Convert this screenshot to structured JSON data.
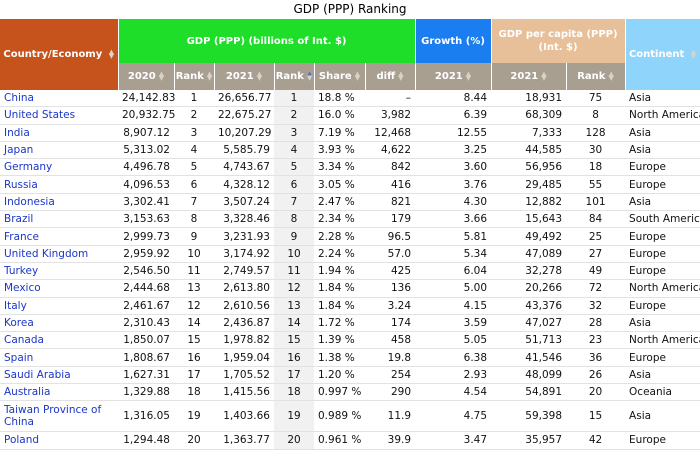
{
  "title": "GDP (PPP) Ranking",
  "headers": {
    "country": "Country/Economy",
    "gdp": "GDP (PPP) (billions of Int. $)",
    "growth": "Growth (%)",
    "capita": "GDP per capita (PPP) (Int. $)",
    "continent": "Continent",
    "sub": [
      "2020",
      "Rank",
      "2021",
      "Rank",
      "Share",
      "diff",
      "2021",
      "2021",
      "Rank"
    ]
  },
  "rows": [
    {
      "country": "China",
      "gdp2020": "24,142.83",
      "rank2020": "1",
      "gdp2021": "26,656.77",
      "rank2021": "1",
      "share": "18.8 %",
      "diff": "–",
      "growth": "8.44",
      "capita": "18,931",
      "capitaRank": "75",
      "continent": "Asia"
    },
    {
      "country": "United States",
      "gdp2020": "20,932.75",
      "rank2020": "2",
      "gdp2021": "22,675.27",
      "rank2021": "2",
      "share": "16.0 %",
      "diff": "3,982",
      "growth": "6.39",
      "capita": "68,309",
      "capitaRank": "8",
      "continent": "North America"
    },
    {
      "country": "India",
      "gdp2020": "8,907.12",
      "rank2020": "3",
      "gdp2021": "10,207.29",
      "rank2021": "3",
      "share": "7.19 %",
      "diff": "12,468",
      "growth": "12.55",
      "capita": "7,333",
      "capitaRank": "128",
      "continent": "Asia"
    },
    {
      "country": "Japan",
      "gdp2020": "5,313.02",
      "rank2020": "4",
      "gdp2021": "5,585.79",
      "rank2021": "4",
      "share": "3.93 %",
      "diff": "4,622",
      "growth": "3.25",
      "capita": "44,585",
      "capitaRank": "30",
      "continent": "Asia"
    },
    {
      "country": "Germany",
      "gdp2020": "4,496.78",
      "rank2020": "5",
      "gdp2021": "4,743.67",
      "rank2021": "5",
      "share": "3.34 %",
      "diff": "842",
      "growth": "3.60",
      "capita": "56,956",
      "capitaRank": "18",
      "continent": "Europe"
    },
    {
      "country": "Russia",
      "gdp2020": "4,096.53",
      "rank2020": "6",
      "gdp2021": "4,328.12",
      "rank2021": "6",
      "share": "3.05 %",
      "diff": "416",
      "growth": "3.76",
      "capita": "29,485",
      "capitaRank": "55",
      "continent": "Europe"
    },
    {
      "country": "Indonesia",
      "gdp2020": "3,302.41",
      "rank2020": "7",
      "gdp2021": "3,507.24",
      "rank2021": "7",
      "share": "2.47 %",
      "diff": "821",
      "growth": "4.30",
      "capita": "12,882",
      "capitaRank": "101",
      "continent": "Asia"
    },
    {
      "country": "Brazil",
      "gdp2020": "3,153.63",
      "rank2020": "8",
      "gdp2021": "3,328.46",
      "rank2021": "8",
      "share": "2.34 %",
      "diff": "179",
      "growth": "3.66",
      "capita": "15,643",
      "capitaRank": "84",
      "continent": "South America"
    },
    {
      "country": "France",
      "gdp2020": "2,999.73",
      "rank2020": "9",
      "gdp2021": "3,231.93",
      "rank2021": "9",
      "share": "2.28 %",
      "diff": "96.5",
      "growth": "5.81",
      "capita": "49,492",
      "capitaRank": "25",
      "continent": "Europe"
    },
    {
      "country": "United Kingdom",
      "gdp2020": "2,959.92",
      "rank2020": "10",
      "gdp2021": "3,174.92",
      "rank2021": "10",
      "share": "2.24 %",
      "diff": "57.0",
      "growth": "5.34",
      "capita": "47,089",
      "capitaRank": "27",
      "continent": "Europe"
    },
    {
      "country": "Turkey",
      "gdp2020": "2,546.50",
      "rank2020": "11",
      "gdp2021": "2,749.57",
      "rank2021": "11",
      "share": "1.94 %",
      "diff": "425",
      "growth": "6.04",
      "capita": "32,278",
      "capitaRank": "49",
      "continent": "Europe"
    },
    {
      "country": "Mexico",
      "gdp2020": "2,444.68",
      "rank2020": "13",
      "gdp2021": "2,613.80",
      "rank2021": "12",
      "share": "1.84 %",
      "diff": "136",
      "growth": "5.00",
      "capita": "20,266",
      "capitaRank": "72",
      "continent": "North America"
    },
    {
      "country": "Italy",
      "gdp2020": "2,461.67",
      "rank2020": "12",
      "gdp2021": "2,610.56",
      "rank2021": "13",
      "share": "1.84 %",
      "diff": "3.24",
      "growth": "4.15",
      "capita": "43,376",
      "capitaRank": "32",
      "continent": "Europe"
    },
    {
      "country": "Korea",
      "gdp2020": "2,310.43",
      "rank2020": "14",
      "gdp2021": "2,436.87",
      "rank2021": "14",
      "share": "1.72 %",
      "diff": "174",
      "growth": "3.59",
      "capita": "47,027",
      "capitaRank": "28",
      "continent": "Asia"
    },
    {
      "country": "Canada",
      "gdp2020": "1,850.07",
      "rank2020": "15",
      "gdp2021": "1,978.82",
      "rank2021": "15",
      "share": "1.39 %",
      "diff": "458",
      "growth": "5.05",
      "capita": "51,713",
      "capitaRank": "23",
      "continent": "North America"
    },
    {
      "country": "Spain",
      "gdp2020": "1,808.67",
      "rank2020": "16",
      "gdp2021": "1,959.04",
      "rank2021": "16",
      "share": "1.38 %",
      "diff": "19.8",
      "growth": "6.38",
      "capita": "41,546",
      "capitaRank": "36",
      "continent": "Europe"
    },
    {
      "country": "Saudi Arabia",
      "gdp2020": "1,627.31",
      "rank2020": "17",
      "gdp2021": "1,705.52",
      "rank2021": "17",
      "share": "1.20 %",
      "diff": "254",
      "growth": "2.93",
      "capita": "48,099",
      "capitaRank": "26",
      "continent": "Asia"
    },
    {
      "country": "Australia",
      "gdp2020": "1,329.88",
      "rank2020": "18",
      "gdp2021": "1,415.56",
      "rank2021": "18",
      "share": "0.997 %",
      "diff": "290",
      "growth": "4.54",
      "capita": "54,891",
      "capitaRank": "20",
      "continent": "Oceania"
    },
    {
      "country": "Taiwan Province of China",
      "gdp2020": "1,316.05",
      "rank2020": "19",
      "gdp2021": "1,403.66",
      "rank2021": "19",
      "share": "0.989 %",
      "diff": "11.9",
      "growth": "4.75",
      "capita": "59,398",
      "capitaRank": "15",
      "continent": "Asia"
    },
    {
      "country": "Poland",
      "gdp2020": "1,294.48",
      "rank2020": "20",
      "gdp2021": "1,363.77",
      "rank2021": "20",
      "share": "0.961 %",
      "diff": "39.9",
      "growth": "3.47",
      "capita": "35,957",
      "capitaRank": "42",
      "continent": "Europe"
    }
  ],
  "colors": {
    "country_header": "#c6531c",
    "gdp_header": "#1fde2a",
    "growth_header": "#1b7ef0",
    "capita_header": "#e7c09a",
    "continent_header": "#8fd5fb",
    "subheader": "#a89f91",
    "link": "#1a36c9"
  },
  "sort": {
    "active_column": "Rank",
    "direction": "ascending"
  }
}
